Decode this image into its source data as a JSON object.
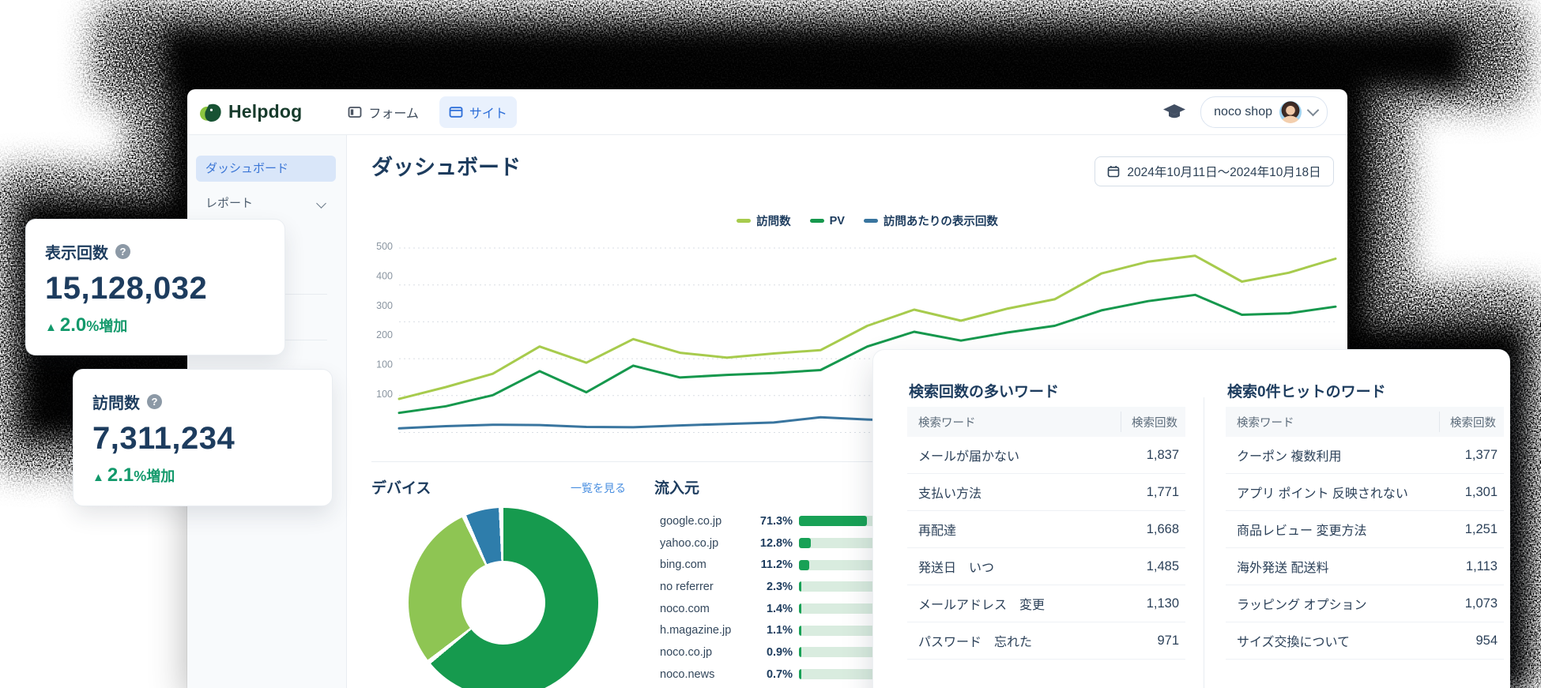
{
  "window": {
    "brand": "Helpdog"
  },
  "header": {
    "nav": [
      {
        "label": "フォーム",
        "active": false
      },
      {
        "label": "サイト",
        "active": true
      }
    ],
    "account": {
      "name": "noco shop"
    }
  },
  "sidebar": {
    "items": [
      {
        "label": "ダッシュボード",
        "active": true
      },
      {
        "label": "レポート",
        "expandable": true
      }
    ]
  },
  "page": {
    "title": "ダッシュボード",
    "date_range": "2024年10月11日〜2024年10月18日"
  },
  "stat_cards": [
    {
      "label": "表示回数",
      "help": "?",
      "value": "15,128,032",
      "arrow": "▲",
      "change": "2.0",
      "change_suffix": "%増加"
    },
    {
      "label": "訪問数",
      "help": "?",
      "value": "7,311,234",
      "arrow": "▲",
      "change": "2.1",
      "change_suffix": "%増加"
    }
  ],
  "sections": {
    "device": {
      "title": "デバイス",
      "link_label": "一覧を見る"
    },
    "referrers": {
      "title": "流入元"
    }
  },
  "search_tables": [
    {
      "title": "検索回数の多いワード",
      "columns": [
        "検索ワード",
        "検索回数"
      ],
      "rows": [
        [
          "メールが届かない",
          "1,837"
        ],
        [
          "支払い方法",
          "1,771"
        ],
        [
          "再配達",
          "1,668"
        ],
        [
          "発送日　いつ",
          "1,485"
        ],
        [
          "メールアドレス　変更",
          "1,130"
        ],
        [
          "パスワード　忘れた",
          "971"
        ]
      ]
    },
    {
      "title": "検索0件ヒットのワード",
      "columns": [
        "検索ワード",
        "検索回数"
      ],
      "rows": [
        [
          "クーポン 複数利用",
          "1,377"
        ],
        [
          "アプリ ポイント 反映されない",
          "1,301"
        ],
        [
          "商品レビュー 変更方法",
          "1,251"
        ],
        [
          "海外発送 配送料",
          "1,113"
        ],
        [
          "ラッピング オプション",
          "1,073"
        ],
        [
          "サイズ交換について",
          "954"
        ]
      ]
    }
  ],
  "chart_data": [
    {
      "type": "line",
      "title": "",
      "legend_position": "top",
      "grid": true,
      "y_tick_labels": [
        "500",
        "400",
        "300",
        "200",
        "100",
        "100"
      ],
      "x_range_label": "2024年10月11日〜2024年10月18日",
      "series": [
        {
          "name": "訪問数",
          "color": "#a7cb4d",
          "values": [
            90,
            122,
            158,
            232,
            188,
            252,
            215,
            202,
            213,
            222,
            288,
            332,
            302,
            335,
            360,
            430,
            462,
            478,
            408,
            432,
            470
          ]
        },
        {
          "name": "PV",
          "color": "#16984d",
          "values": [
            52,
            70,
            100,
            165,
            108,
            180,
            148,
            155,
            160,
            168,
            232,
            272,
            248,
            270,
            288,
            330,
            355,
            372,
            318,
            322,
            340
          ]
        },
        {
          "name": "訪問あたりの表示回数",
          "color": "#39759f",
          "values": [
            10,
            16,
            20,
            19,
            14,
            13,
            18,
            22,
            26,
            40,
            34,
            30,
            32,
            34,
            35,
            36,
            38,
            40,
            38,
            40,
            42
          ]
        }
      ]
    },
    {
      "type": "pie",
      "donut": true,
      "title": "デバイス",
      "values": [
        64.7,
        28.9,
        6.4
      ],
      "colors": [
        "#169a4e",
        "#8ec553",
        "#2e7dab"
      ],
      "labels_visible": false
    },
    {
      "type": "bar",
      "title": "流入元",
      "unit": "%",
      "categories": [
        "google.co.jp",
        "yahoo.co.jp",
        "bing.com",
        "no referrer",
        "noco.com",
        "h.magazine.jp",
        "noco.co.jp",
        "noco.news"
      ],
      "values": [
        71.3,
        12.8,
        11.2,
        2.3,
        1.4,
        1.1,
        0.9,
        0.7
      ],
      "bar_color": "#18a156",
      "track_color": "#d9ecdf"
    }
  ],
  "colors": {
    "navy": "#1d3c5e",
    "accent_green": "#169a4e",
    "accent_lime": "#a7cb4d",
    "accent_blue_line": "#39759f",
    "tab_blue": "#2e6fd9",
    "link_blue": "#4a8fe0",
    "positive_green": "#12996b",
    "sidebar_active_bg": "#d9e6f9"
  }
}
